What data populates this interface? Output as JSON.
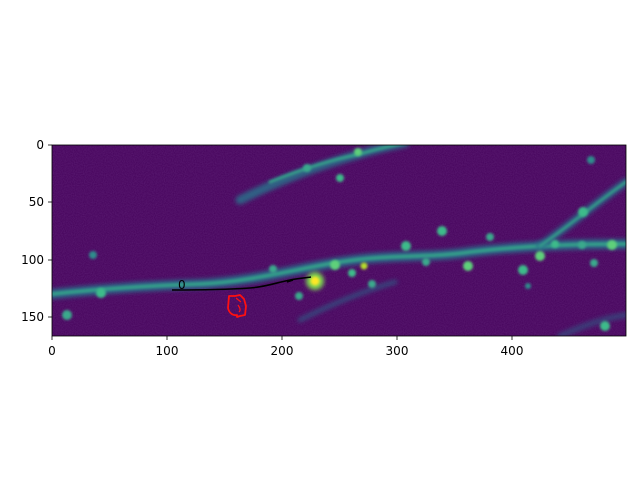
{
  "figure": {
    "colors": {
      "background": "#44015a",
      "dendrite": "#2f8c8c",
      "dendrite_bright": "#43c98a",
      "hotspot": "#fde725",
      "trace": "#000000",
      "roi": "#ff1010"
    },
    "axes": {
      "x_ticks": [
        "0",
        "100",
        "200",
        "300",
        "400"
      ],
      "y_ticks": [
        "0",
        "50",
        "100",
        "150"
      ]
    },
    "annotations": {
      "trace_label": "0"
    }
  }
}
